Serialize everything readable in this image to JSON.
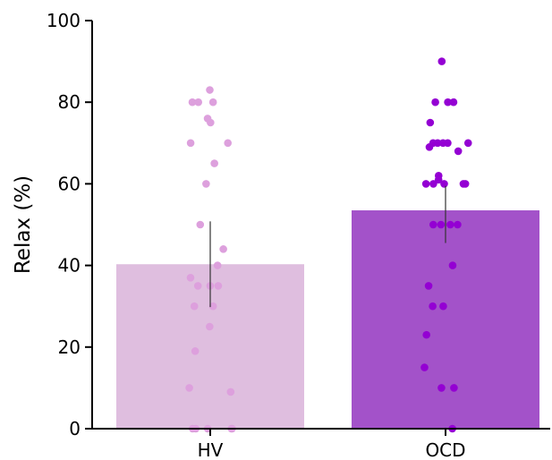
{
  "chart_data": {
    "type": "bar",
    "title": "",
    "xlabel": "",
    "ylabel": "Relax (%)",
    "ylim": [
      0,
      100
    ],
    "yticks": [
      0,
      20,
      40,
      60,
      80,
      100
    ],
    "grid": false,
    "categories": [
      "HV",
      "OCD"
    ],
    "values": [
      40.3,
      53.5
    ],
    "error": [
      {
        "low": 29.8,
        "high": 50.8
      },
      {
        "low": 45.5,
        "high": 59.5
      }
    ],
    "bar_colors": [
      "#dfbedf",
      "#a352c9"
    ],
    "point_colors": [
      "#dda0dd",
      "#9400d3"
    ],
    "points": [
      [
        83,
        80,
        80,
        80,
        76,
        75,
        70,
        70,
        65,
        60,
        50,
        44,
        40,
        37,
        35,
        35,
        35,
        30,
        30,
        25,
        19,
        10,
        9,
        0,
        0,
        0,
        0,
        0
      ],
      [
        90,
        80,
        80,
        80,
        75,
        70,
        70,
        70,
        70,
        70,
        69,
        68,
        62,
        61,
        60,
        60,
        60,
        60,
        60,
        50,
        50,
        50,
        50,
        40,
        35,
        30,
        30,
        23,
        15,
        10,
        10,
        0
      ]
    ]
  }
}
